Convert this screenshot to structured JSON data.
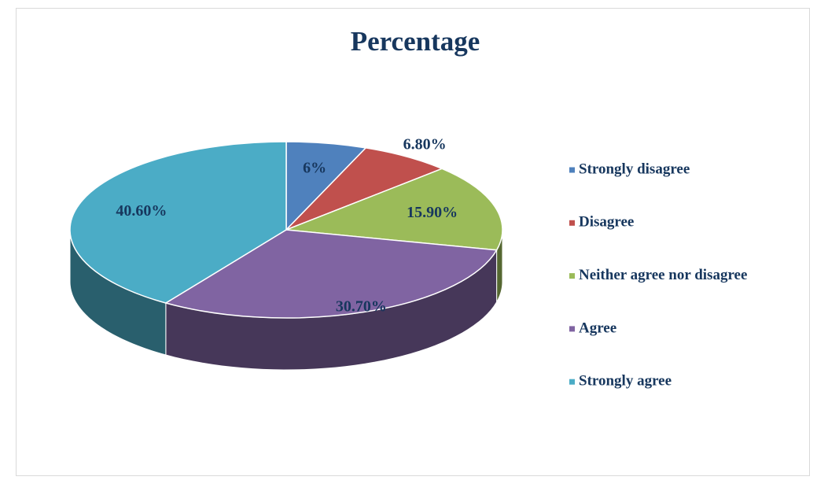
{
  "chart_data": {
    "type": "pie",
    "title": "Percentage",
    "categories": [
      "Strongly disagree",
      "Disagree",
      "Neither agree nor disagree",
      "Agree",
      "Strongly agree"
    ],
    "values": [
      6,
      6.8,
      15.9,
      30.7,
      40.6
    ],
    "value_labels": [
      "6%",
      "6.80%",
      "15.90%",
      "30.70%",
      "40.60%"
    ],
    "colors": [
      "#4f81bd",
      "#c0504d",
      "#9bbb59",
      "#8064a2",
      "#4bacc6"
    ],
    "legend": "right"
  }
}
